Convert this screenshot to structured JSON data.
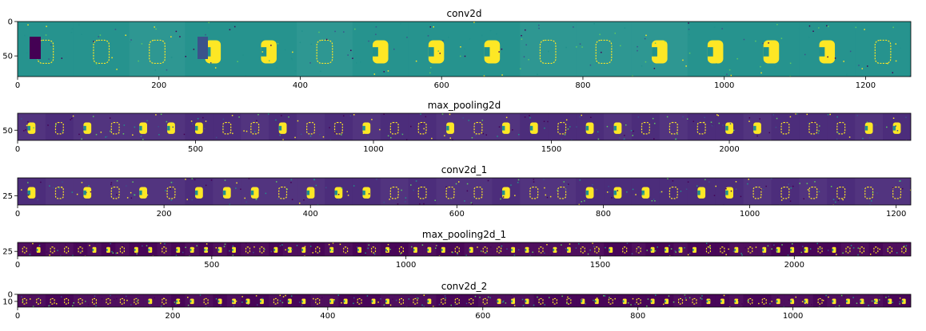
{
  "chart_data": [
    {
      "type": "heatmap",
      "title": "conv2d",
      "xlabel": "",
      "ylabel": "",
      "xlim": [
        0,
        1264
      ],
      "ylim": [
        80,
        0
      ],
      "xticks": [
        0,
        200,
        400,
        600,
        800,
        1000,
        1200
      ],
      "yticks": [
        0,
        50
      ],
      "tiles": 16,
      "background": "#21918c",
      "colormap": [
        "#440154",
        "#3b528b",
        "#21918c",
        "#5ec962",
        "#fde725"
      ],
      "grid": false
    },
    {
      "type": "heatmap",
      "title": "max_pooling2d",
      "xlabel": "",
      "ylabel": "",
      "xlim": [
        0,
        2510
      ],
      "ylim": [
        80,
        0
      ],
      "xticks": [
        0,
        500,
        1000,
        1500,
        2000
      ],
      "yticks": [
        50
      ],
      "tiles": 32,
      "background": "#482878",
      "colormap": [
        "#440154",
        "#3b528b",
        "#21918c",
        "#5ec962",
        "#fde725"
      ],
      "grid": false
    },
    {
      "type": "heatmap",
      "title": "conv2d_1",
      "xlabel": "",
      "ylabel": "",
      "xlim": [
        0,
        1220
      ],
      "ylim": [
        38,
        0
      ],
      "xticks": [
        0,
        200,
        400,
        600,
        800,
        1000,
        1200
      ],
      "yticks": [
        25
      ],
      "tiles": 32,
      "background": "#482878",
      "colormap": [
        "#440154",
        "#3b528b",
        "#21918c",
        "#5ec962",
        "#fde725"
      ],
      "grid": false
    },
    {
      "type": "heatmap",
      "title": "max_pooling2d_1",
      "xlabel": "",
      "ylabel": "",
      "xlim": [
        0,
        2300
      ],
      "ylim": [
        38,
        0
      ],
      "xticks": [
        0,
        500,
        1000,
        1500,
        2000
      ],
      "yticks": [
        25
      ],
      "tiles": 64,
      "background": "#440154",
      "colormap": [
        "#440154",
        "#3b528b",
        "#21918c",
        "#5ec962",
        "#fde725"
      ],
      "grid": false
    },
    {
      "type": "heatmap",
      "title": "conv2d_2",
      "xlabel": "",
      "ylabel": "",
      "xlim": [
        0,
        1152
      ],
      "ylim": [
        18,
        0
      ],
      "xticks": [
        0,
        200,
        400,
        600,
        800,
        1000
      ],
      "yticks": [
        0,
        10
      ],
      "tiles": 64,
      "background": "#440154",
      "colormap": [
        "#440154",
        "#3b528b",
        "#21918c",
        "#5ec962",
        "#fde725"
      ],
      "grid": false
    }
  ]
}
